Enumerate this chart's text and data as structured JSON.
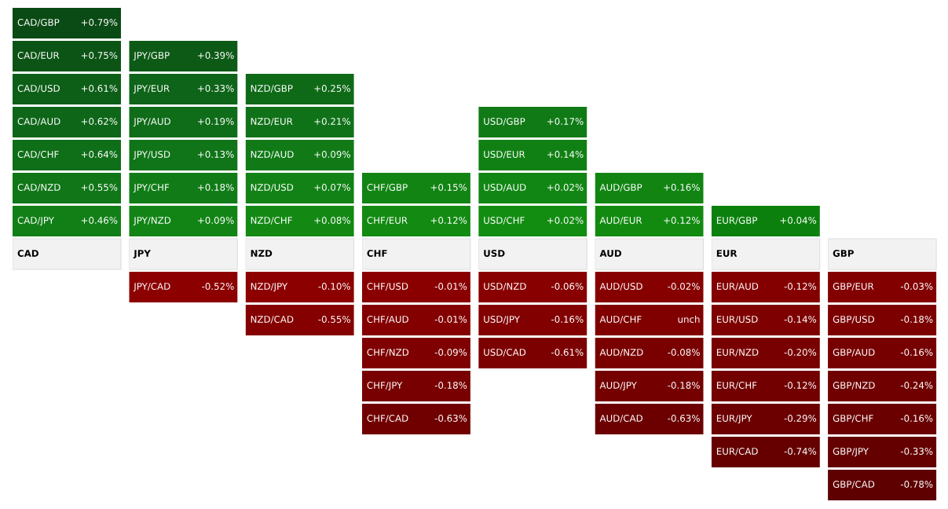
{
  "chart_data": [
    {
      "type": "other",
      "title": "CAD",
      "categories": [
        "CAD/GBP",
        "CAD/EUR",
        "CAD/USD",
        "CAD/AUD",
        "CAD/CHF",
        "CAD/NZD",
        "CAD/JPY"
      ],
      "values": [
        0.79,
        0.75,
        0.61,
        0.62,
        0.64,
        0.55,
        0.46
      ],
      "value_labels": [
        "+0.79%",
        "+0.75%",
        "+0.61%",
        "+0.62%",
        "+0.64%",
        "+0.55%",
        "+0.46%"
      ],
      "colors": [
        "#0a4a14",
        "#0c5416",
        "#0d5e17",
        "#0e6618",
        "#0f6e18",
        "#107618",
        "#117f16"
      ]
    },
    {
      "type": "other",
      "title": "JPY",
      "categories": [
        "JPY/GBP",
        "JPY/EUR",
        "JPY/AUD",
        "JPY/USD",
        "JPY/CHF",
        "JPY/NZD",
        "JPY/CAD"
      ],
      "values": [
        0.39,
        0.33,
        0.19,
        0.13,
        0.18,
        0.09,
        -0.52
      ],
      "value_labels": [
        "+0.39%",
        "+0.33%",
        "+0.19%",
        "+0.13%",
        "+0.18%",
        "+0.09%",
        "-0.52%"
      ],
      "colors": [
        "#0d5a16",
        "#0e6418",
        "#0f6c18",
        "#107418",
        "#117c17",
        "#128416",
        "#8c0000"
      ]
    },
    {
      "type": "other",
      "title": "NZD",
      "categories": [
        "NZD/GBP",
        "NZD/EUR",
        "NZD/AUD",
        "NZD/USD",
        "NZD/CHF",
        "NZD/JPY",
        "NZD/CAD"
      ],
      "values": [
        0.25,
        0.21,
        0.09,
        0.07,
        0.08,
        -0.1,
        -0.55
      ],
      "value_labels": [
        "+0.25%",
        "+0.21%",
        "+0.09%",
        "+0.07%",
        "+0.08%",
        "-0.10%",
        "-0.55%"
      ],
      "colors": [
        "#0f6a18",
        "#107218",
        "#117a17",
        "#128216",
        "#138914",
        "#8c0000",
        "#850000"
      ]
    },
    {
      "type": "other",
      "title": "CHF",
      "categories": [
        "CHF/GBP",
        "CHF/EUR",
        "CHF/USD",
        "CHF/AUD",
        "CHF/NZD",
        "CHF/JPY",
        "CHF/CAD"
      ],
      "values": [
        0.15,
        0.12,
        -0.01,
        -0.01,
        -0.09,
        -0.18,
        -0.63
      ],
      "value_labels": [
        "+0.15%",
        "+0.12%",
        "-0.01%",
        "-0.01%",
        "-0.09%",
        "-0.18%",
        "-0.63%"
      ],
      "colors": [
        "#128414",
        "#138a12",
        "#8a0000",
        "#840000",
        "#7e0000",
        "#780000",
        "#700000"
      ]
    },
    {
      "type": "other",
      "title": "USD",
      "categories": [
        "USD/GBP",
        "USD/EUR",
        "USD/AUD",
        "USD/CHF",
        "USD/NZD",
        "USD/JPY",
        "USD/CAD"
      ],
      "values": [
        0.17,
        0.14,
        0.02,
        0.02,
        -0.06,
        -0.16,
        -0.61
      ],
      "value_labels": [
        "+0.17%",
        "+0.14%",
        "+0.02%",
        "+0.02%",
        "-0.06%",
        "-0.16%",
        "-0.61%"
      ],
      "colors": [
        "#107a16",
        "#118014",
        "#128614",
        "#138c12",
        "#880000",
        "#820000",
        "#7c0000"
      ]
    },
    {
      "type": "other",
      "title": "AUD",
      "categories": [
        "AUD/GBP",
        "AUD/EUR",
        "AUD/USD",
        "AUD/CHF",
        "AUD/NZD",
        "AUD/JPY",
        "AUD/CAD"
      ],
      "values": [
        0.16,
        0.12,
        -0.02,
        null,
        -0.08,
        -0.18,
        -0.63
      ],
      "value_labels": [
        "+0.16%",
        "+0.12%",
        "-0.02%",
        "unch",
        "-0.08%",
        "-0.18%",
        "-0.63%"
      ],
      "colors": [
        "#118412",
        "#128a10",
        "#860000",
        "#800000",
        "#7a0000",
        "#740000",
        "#6c0000"
      ]
    },
    {
      "type": "other",
      "title": "EUR",
      "categories": [
        "EUR/GBP",
        "EUR/AUD",
        "EUR/USD",
        "EUR/NZD",
        "EUR/CHF",
        "EUR/JPY",
        "EUR/CAD"
      ],
      "values": [
        0.04,
        -0.12,
        -0.14,
        -0.2,
        -0.12,
        -0.29,
        -0.74
      ],
      "value_labels": [
        "+0.04%",
        "-0.12%",
        "-0.14%",
        "-0.20%",
        "-0.12%",
        "-0.29%",
        "-0.74%"
      ],
      "colors": [
        "#0b800c",
        "#840000",
        "#7e0000",
        "#780000",
        "#720000",
        "#6c0000",
        "#660000"
      ]
    },
    {
      "type": "other",
      "title": "GBP",
      "categories": [
        "GBP/EUR",
        "GBP/USD",
        "GBP/AUD",
        "GBP/NZD",
        "GBP/CHF",
        "GBP/JPY",
        "GBP/CAD"
      ],
      "values": [
        -0.03,
        -0.18,
        -0.16,
        -0.24,
        -0.16,
        -0.33,
        -0.78
      ],
      "value_labels": [
        "-0.03%",
        "-0.18%",
        "-0.16%",
        "-0.24%",
        "-0.16%",
        "-0.33%",
        "-0.78%"
      ],
      "colors": [
        "#820000",
        "#7c0000",
        "#760000",
        "#700000",
        "#6a0000",
        "#640000",
        "#5e0000"
      ]
    }
  ]
}
